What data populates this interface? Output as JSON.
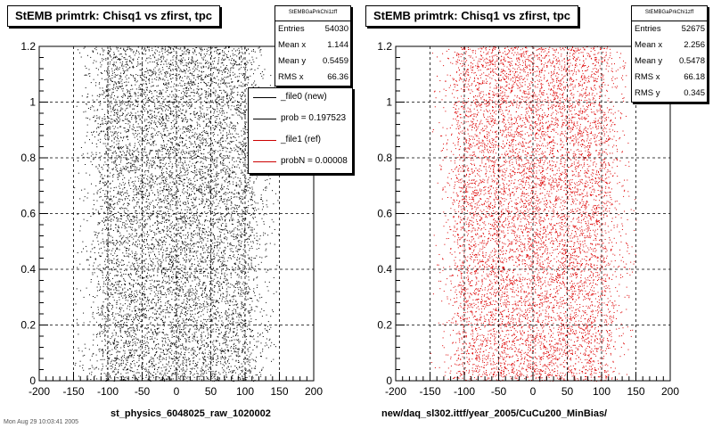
{
  "panels": [
    {
      "title": "StEMB primtrk: Chisq1  vs zfirst, tpc",
      "stats": {
        "name": "StEMBGaPrkChi1zff",
        "rows": [
          {
            "label": "Entries",
            "value": "54030"
          },
          {
            "label": "Mean x",
            "value": "1.144"
          },
          {
            "label": "Mean y",
            "value": "0.5459"
          },
          {
            "label": "RMS x",
            "value": "66.36"
          }
        ]
      },
      "xcaption": "st_physics_6048025_raw_1020002"
    },
    {
      "title": "StEMB primtrk: Chisq1  vs zfirst, tpc",
      "stats": {
        "name": "StEMBGaPrkChi1zff",
        "rows": [
          {
            "label": "Entries",
            "value": "52675"
          },
          {
            "label": "Mean x",
            "value": "2.256"
          },
          {
            "label": "Mean y",
            "value": "0.5478"
          },
          {
            "label": "RMS x",
            "value": "66.18"
          },
          {
            "label": "RMS y",
            "value": "0.345"
          }
        ]
      },
      "xcaption": "new/daq_sl302.ittf/year_2005/CuCu200_MinBias/"
    }
  ],
  "legend": {
    "entries": [
      {
        "text": "_file0 (new)",
        "color": "#000000"
      },
      {
        "text": "prob = 0.197523",
        "color": "#000000"
      },
      {
        "text": "_file1 (ref)",
        "color": "#cc0000"
      },
      {
        "text": "probN = 0.00008",
        "color": "#cc0000"
      }
    ]
  },
  "footer": "Mon Aug 29 10:03:41 2005",
  "chart_data": [
    {
      "type": "scatter",
      "title": "StEMB primtrk: Chisq1  vs zfirst, tpc",
      "xlabel": "st_physics_6048025_raw_1020002",
      "ylabel": "",
      "xlim": [
        -200,
        200
      ],
      "ylim": [
        0,
        1.2
      ],
      "xticks": [
        -200,
        -150,
        -100,
        -50,
        0,
        50,
        100,
        150,
        200
      ],
      "yticks": [
        0,
        0.2,
        0.4,
        0.6,
        0.8,
        1,
        1.2
      ],
      "grid": true,
      "point_color": "#000000",
      "entries": 54030,
      "x_density_profile": {
        "x": [
          -150,
          -120,
          -100,
          -50,
          0,
          50,
          100,
          120,
          150
        ],
        "density": [
          0.02,
          0.25,
          0.9,
          1.0,
          1.0,
          1.0,
          0.9,
          0.25,
          0.02
        ]
      },
      "y_range_of_points": [
        0,
        1.2
      ]
    },
    {
      "type": "scatter",
      "title": "StEMB primtrk: Chisq1  vs zfirst, tpc",
      "xlabel": "new/daq_sl302.ittf/year_2005/CuCu200_MinBias/",
      "ylabel": "",
      "xlim": [
        -200,
        200
      ],
      "ylim": [
        0,
        1.2
      ],
      "xticks": [
        -200,
        -150,
        -100,
        -50,
        0,
        50,
        100,
        150,
        200
      ],
      "yticks": [
        0,
        0.2,
        0.4,
        0.6,
        0.8,
        1,
        1.2
      ],
      "grid": true,
      "point_color": "#dd0000",
      "entries": 52675,
      "x_density_profile": {
        "x": [
          -150,
          -120,
          -100,
          -50,
          0,
          50,
          100,
          120,
          150
        ],
        "density": [
          0.02,
          0.25,
          0.9,
          1.0,
          1.0,
          1.0,
          0.9,
          0.25,
          0.02
        ]
      },
      "y_range_of_points": [
        0,
        1.2
      ]
    }
  ]
}
